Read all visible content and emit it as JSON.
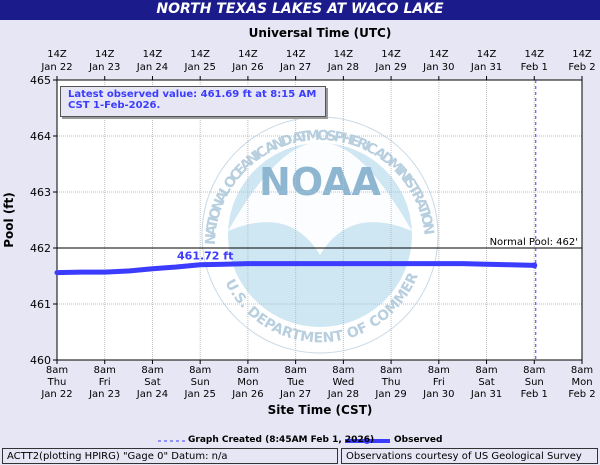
{
  "header": {
    "title": "NORTH TEXAS LAKES AT WACO LAKE"
  },
  "annotation": {
    "line1": "Latest observed value: 461.69 ft at 8:15 AM",
    "line2": "CST 1-Feb-2026."
  },
  "watermark": {
    "logo_text": "NOAA",
    "ring_top": "NATIONAL OCEANIC AND ATMOSPHERIC ADMINISTRATION",
    "ring_bottom": "U.S. DEPARTMENT OF COMMERCE"
  },
  "legend": {
    "created_label": "Graph Created (8:45AM Feb 1, 2026)",
    "observed_label": "Observed"
  },
  "footer": {
    "left": "ACTT2(plotting HPIRG) \"Gage 0\" Datum: n/a",
    "right": "Observations courtesy of US Geological Survey"
  },
  "colors": {
    "background": "#e6e6f5",
    "title_bar": "#1b1b8c",
    "observed_series": "#3c3cff",
    "created_line": "#3c3cff"
  },
  "chart_data": {
    "type": "line",
    "xlabel_top": "Universal Time (UTC)",
    "xlabel": "Site Time (CST)",
    "ylabel": "Pool (ft)",
    "ylim": [
      460,
      465
    ],
    "yticks": [
      460,
      461,
      462,
      463,
      464,
      465
    ],
    "xrange": [
      "Jan 22 8am CST",
      "Feb 2 8am CST"
    ],
    "grid": true,
    "top_ticks": [
      {
        "time": "14Z",
        "date": "Jan 22"
      },
      {
        "time": "14Z",
        "date": "Jan 23"
      },
      {
        "time": "14Z",
        "date": "Jan 24"
      },
      {
        "time": "14Z",
        "date": "Jan 25"
      },
      {
        "time": "14Z",
        "date": "Jan 26"
      },
      {
        "time": "14Z",
        "date": "Jan 27"
      },
      {
        "time": "14Z",
        "date": "Jan 28"
      },
      {
        "time": "14Z",
        "date": "Jan 29"
      },
      {
        "time": "14Z",
        "date": "Jan 30"
      },
      {
        "time": "14Z",
        "date": "Jan 31"
      },
      {
        "time": "14Z",
        "date": "Feb 1"
      },
      {
        "time": "14Z",
        "date": "Feb 2"
      }
    ],
    "bottom_ticks": [
      {
        "time": "8am",
        "day": "Thu",
        "date": "Jan 22"
      },
      {
        "time": "8am",
        "day": "Fri",
        "date": "Jan 23"
      },
      {
        "time": "8am",
        "day": "Sat",
        "date": "Jan 24"
      },
      {
        "time": "8am",
        "day": "Sun",
        "date": "Jan 25"
      },
      {
        "time": "8am",
        "day": "Mon",
        "date": "Jan 26"
      },
      {
        "time": "8am",
        "day": "Tue",
        "date": "Jan 27"
      },
      {
        "time": "8am",
        "day": "Wed",
        "date": "Jan 28"
      },
      {
        "time": "8am",
        "day": "Thu",
        "date": "Jan 29"
      },
      {
        "time": "8am",
        "day": "Fri",
        "date": "Jan 30"
      },
      {
        "time": "8am",
        "day": "Sat",
        "date": "Jan 31"
      },
      {
        "time": "8am",
        "day": "Sun",
        "date": "Feb 1"
      },
      {
        "time": "8am",
        "day": "Mon",
        "date": "Feb 2"
      }
    ],
    "series": [
      {
        "name": "Observed",
        "points": [
          [
            "Jan 22 8am",
            461.56
          ],
          [
            "Jan 22 8pm",
            461.57
          ],
          [
            "Jan 23 8am",
            461.57
          ],
          [
            "Jan 23 8pm",
            461.59
          ],
          [
            "Jan 24 8am",
            461.63
          ],
          [
            "Jan 24 8pm",
            461.66
          ],
          [
            "Jan 25 8am",
            461.7
          ],
          [
            "Jan 25 8pm",
            461.71
          ],
          [
            "Jan 26 8am",
            461.72
          ],
          [
            "Jan 26 8pm",
            461.72
          ],
          [
            "Jan 27 8am",
            461.72
          ],
          [
            "Jan 27 8pm",
            461.72
          ],
          [
            "Jan 28 8am",
            461.72
          ],
          [
            "Jan 28 8pm",
            461.72
          ],
          [
            "Jan 29 8am",
            461.72
          ],
          [
            "Jan 29 8pm",
            461.72
          ],
          [
            "Jan 30 8am",
            461.72
          ],
          [
            "Jan 30 8pm",
            461.72
          ],
          [
            "Jan 31 8am",
            461.71
          ],
          [
            "Jan 31 8pm",
            461.7
          ],
          [
            "Feb 1 8am",
            461.69
          ]
        ]
      }
    ],
    "reference_lines": [
      {
        "label": "Normal Pool: 462'",
        "value": 462
      }
    ],
    "created_marker": "Feb 1 8:45am",
    "point_labels": [
      {
        "text": "461.72 ft",
        "x": "Jan 25 8am",
        "y": 461.72
      }
    ]
  }
}
